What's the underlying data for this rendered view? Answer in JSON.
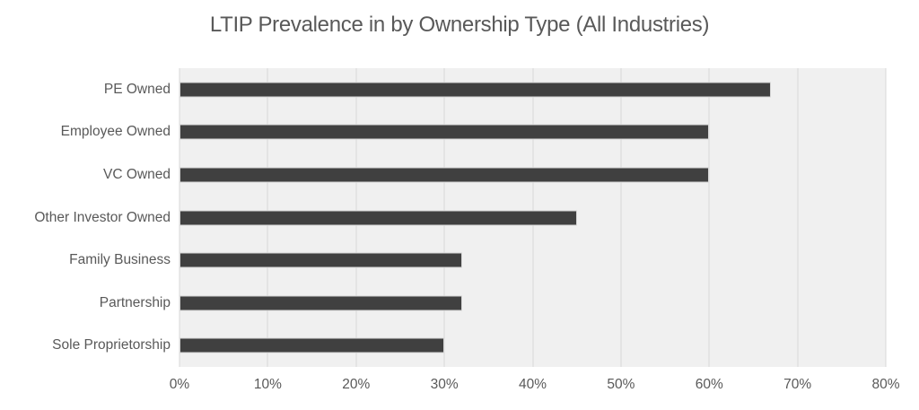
{
  "title": "LTIP Prevalence in by Ownership Type (All Industries)",
  "chart_data": {
    "type": "bar",
    "orientation": "horizontal",
    "title": "LTIP Prevalence in by Ownership Type (All Industries)",
    "categories": [
      "PE Owned",
      "Employee Owned",
      "VC Owned",
      "Other Investor Owned",
      "Family Business",
      "Partnership",
      "Sole Proprietorship"
    ],
    "values": [
      67,
      60,
      60,
      45,
      32,
      32,
      30
    ],
    "unit": "%",
    "xlabel": "",
    "ylabel": "",
    "xlim": [
      0,
      80
    ],
    "x_tick_step": 10,
    "x_ticks": [
      "0%",
      "10%",
      "20%",
      "30%",
      "40%",
      "50%",
      "60%",
      "70%",
      "80%"
    ],
    "grid": true,
    "legend": false,
    "colors": {
      "bar_fill": "#404040",
      "bar_border": "#d6d6d6",
      "plot_background": "#f0f0f0",
      "gridline": "#d9d9d9",
      "text": "#595959",
      "page_background": "#ffffff"
    }
  }
}
